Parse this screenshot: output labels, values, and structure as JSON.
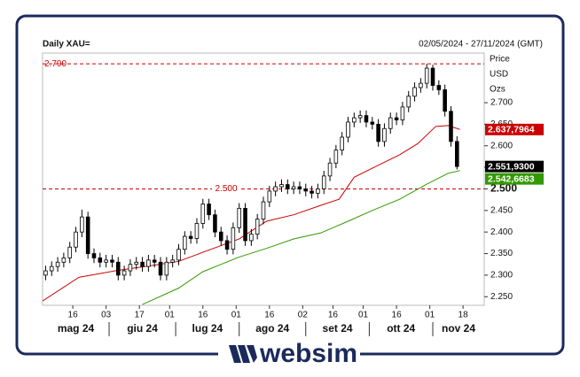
{
  "chart_data": {
    "type": "candlestick",
    "title": "Daily XAU=",
    "subtitle": "02/05/2024 - 27/11/2024 (GMT)",
    "y_label": [
      "Price",
      "USD",
      "Ozs"
    ],
    "x": [
      1,
      3,
      5,
      7,
      9,
      11,
      13,
      15,
      17,
      19,
      21,
      23,
      25,
      27,
      29,
      31,
      33,
      35,
      37,
      39,
      41,
      43,
      45,
      47,
      49,
      51,
      53,
      55,
      57,
      59,
      61,
      63,
      65,
      67,
      69,
      71,
      73,
      75,
      77,
      79,
      81,
      83,
      85,
      87,
      89,
      91,
      93,
      95,
      97,
      99,
      101,
      103,
      105,
      107,
      109,
      111,
      113,
      115,
      117,
      119,
      121,
      123,
      125,
      127,
      129,
      131,
      133,
      135,
      137
    ],
    "open": [
      2300,
      2310,
      2320,
      2330,
      2340,
      2365,
      2400,
      2435,
      2350,
      2340,
      2330,
      2335,
      2330,
      2300,
      2310,
      2325,
      2330,
      2320,
      2335,
      2330,
      2300,
      2330,
      2335,
      2360,
      2390,
      2385,
      2420,
      2465,
      2440,
      2400,
      2380,
      2360,
      2410,
      2455,
      2380,
      2395,
      2430,
      2470,
      2495,
      2505,
      2510,
      2500,
      2505,
      2500,
      2495,
      2490,
      2500,
      2530,
      2560,
      2590,
      2620,
      2655,
      2665,
      2670,
      2655,
      2650,
      2610,
      2640,
      2665,
      2660,
      2690,
      2715,
      2735,
      2745,
      2780,
      2740,
      2730,
      2680,
      2610
    ],
    "high": [
      2322,
      2332,
      2342,
      2352,
      2377,
      2412,
      2452,
      2447,
      2362,
      2352,
      2347,
      2347,
      2342,
      2322,
      2337,
      2342,
      2342,
      2347,
      2347,
      2342,
      2342,
      2347,
      2372,
      2402,
      2402,
      2432,
      2477,
      2477,
      2452,
      2412,
      2392,
      2422,
      2467,
      2467,
      2407,
      2442,
      2482,
      2507,
      2517,
      2522,
      2522,
      2517,
      2517,
      2512,
      2507,
      2512,
      2542,
      2572,
      2602,
      2632,
      2667,
      2677,
      2682,
      2682,
      2667,
      2662,
      2652,
      2677,
      2677,
      2702,
      2727,
      2747,
      2757,
      2790,
      2788,
      2752,
      2742,
      2692,
      2622
    ],
    "low": [
      2288,
      2298,
      2308,
      2318,
      2328,
      2353,
      2388,
      2338,
      2328,
      2318,
      2318,
      2318,
      2288,
      2288,
      2298,
      2313,
      2308,
      2308,
      2318,
      2288,
      2288,
      2318,
      2323,
      2348,
      2373,
      2373,
      2408,
      2428,
      2388,
      2368,
      2348,
      2348,
      2398,
      2368,
      2368,
      2383,
      2418,
      2458,
      2483,
      2493,
      2488,
      2488,
      2488,
      2483,
      2478,
      2478,
      2488,
      2518,
      2548,
      2578,
      2608,
      2643,
      2653,
      2643,
      2638,
      2598,
      2598,
      2628,
      2648,
      2648,
      2678,
      2703,
      2723,
      2733,
      2728,
      2718,
      2668,
      2598,
      2545
    ],
    "close": [
      2310,
      2320,
      2330,
      2340,
      2365,
      2400,
      2435,
      2350,
      2340,
      2330,
      2335,
      2330,
      2300,
      2310,
      2325,
      2330,
      2320,
      2335,
      2330,
      2300,
      2330,
      2335,
      2360,
      2390,
      2385,
      2420,
      2465,
      2440,
      2400,
      2380,
      2360,
      2410,
      2455,
      2380,
      2395,
      2430,
      2470,
      2495,
      2505,
      2510,
      2500,
      2505,
      2500,
      2495,
      2490,
      2500,
      2530,
      2560,
      2590,
      2620,
      2655,
      2665,
      2670,
      2655,
      2650,
      2610,
      2640,
      2665,
      2660,
      2690,
      2715,
      2735,
      2745,
      2780,
      2740,
      2730,
      2680,
      2610,
      2551.93
    ],
    "up_color": "#ffffff",
    "down_color": "#000000",
    "last_label": "2.551,9300",
    "lines": [
      {
        "color": "#cc0000",
        "x": [
          0,
          12,
          24,
          36,
          45,
          53,
          65,
          74,
          83,
          92,
          98,
          103,
          109,
          118,
          124,
          130,
          134,
          138
        ],
        "values": [
          2240,
          2295,
          2310,
          2322,
          2332,
          2353,
          2384,
          2425,
          2440,
          2462,
          2476,
          2527,
          2548,
          2579,
          2605,
          2645,
          2647,
          2637.7964
        ],
        "last_label": "2.637,7964"
      },
      {
        "color": "#339900",
        "x": [
          33,
          45,
          53,
          65,
          74,
          83,
          92,
          101,
          109,
          118,
          127,
          134,
          138
        ],
        "values": [
          2232,
          2270,
          2308,
          2342,
          2362,
          2384,
          2398,
          2425,
          2450,
          2476,
          2511,
          2536,
          2542.6683
        ],
        "last_label": "2.542,6683"
      }
    ],
    "hlines": [
      {
        "value": 2790,
        "label": "2.790"
      },
      {
        "value": 2500,
        "label": "2.500"
      }
    ],
    "hline_color": "#cc0000",
    "xlim": [
      0,
      146
    ],
    "xticks": [
      {
        "value": 10,
        "label": "16"
      },
      {
        "value": 21,
        "label": "03"
      },
      {
        "value": 32,
        "label": "17"
      },
      {
        "value": 42,
        "label": "01"
      },
      {
        "value": 53,
        "label": "16"
      },
      {
        "value": 64,
        "label": "01"
      },
      {
        "value": 75,
        "label": "16"
      },
      {
        "value": 86,
        "label": "02"
      },
      {
        "value": 96,
        "label": "16"
      },
      {
        "value": 106,
        "label": "01"
      },
      {
        "value": 117,
        "label": "16"
      },
      {
        "value": 128,
        "label": "01"
      },
      {
        "value": 139,
        "label": "18"
      }
    ],
    "months": [
      "mag 24",
      "giu 24",
      "lug 24",
      "ago 24",
      "set 24",
      "ott 24",
      "nov 24"
    ],
    "month_bounds": [
      22,
      44,
      65,
      87,
      108,
      129
    ],
    "ylim": [
      2230,
      2815
    ],
    "yticks": [
      {
        "value": 2250,
        "label": "2.250"
      },
      {
        "value": 2300,
        "label": "2.300"
      },
      {
        "value": 2350,
        "label": "2.350"
      },
      {
        "value": 2400,
        "label": "2.400"
      },
      {
        "value": 2450,
        "label": "2.450"
      },
      {
        "value": 2500,
        "label": "2.500"
      },
      {
        "value": 2550,
        "label": "2.550"
      },
      {
        "value": 2600,
        "label": "2.600"
      },
      {
        "value": 2650,
        "label": "2.650"
      },
      {
        "value": 2700,
        "label": "2.700"
      }
    ]
  },
  "brand": "websim"
}
